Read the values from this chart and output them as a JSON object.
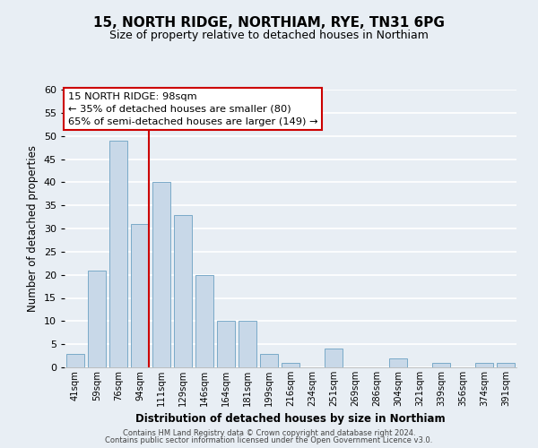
{
  "title": "15, NORTH RIDGE, NORTHIAM, RYE, TN31 6PG",
  "subtitle": "Size of property relative to detached houses in Northiam",
  "xlabel": "Distribution of detached houses by size in Northiam",
  "ylabel": "Number of detached properties",
  "bar_labels": [
    "41sqm",
    "59sqm",
    "76sqm",
    "94sqm",
    "111sqm",
    "129sqm",
    "146sqm",
    "164sqm",
    "181sqm",
    "199sqm",
    "216sqm",
    "234sqm",
    "251sqm",
    "269sqm",
    "286sqm",
    "304sqm",
    "321sqm",
    "339sqm",
    "356sqm",
    "374sqm",
    "391sqm"
  ],
  "bar_values": [
    3,
    21,
    49,
    31,
    40,
    33,
    20,
    10,
    10,
    3,
    1,
    0,
    4,
    0,
    0,
    2,
    0,
    1,
    0,
    1,
    1
  ],
  "bar_color": "#c8d8e8",
  "bar_edge_color": "#7aaac8",
  "highlight_line_color": "#cc0000",
  "highlight_bar_index": 3,
  "ylim": [
    0,
    60
  ],
  "yticks": [
    0,
    5,
    10,
    15,
    20,
    25,
    30,
    35,
    40,
    45,
    50,
    55,
    60
  ],
  "annotation_title": "15 NORTH RIDGE: 98sqm",
  "annotation_line1": "← 35% of detached houses are smaller (80)",
  "annotation_line2": "65% of semi-detached houses are larger (149) →",
  "annotation_box_color": "#ffffff",
  "annotation_box_edge": "#cc0000",
  "footer1": "Contains HM Land Registry data © Crown copyright and database right 2024.",
  "footer2": "Contains public sector information licensed under the Open Government Licence v3.0.",
  "background_color": "#e8eef4",
  "plot_bg_color": "#e8eef4",
  "grid_color": "#ffffff"
}
